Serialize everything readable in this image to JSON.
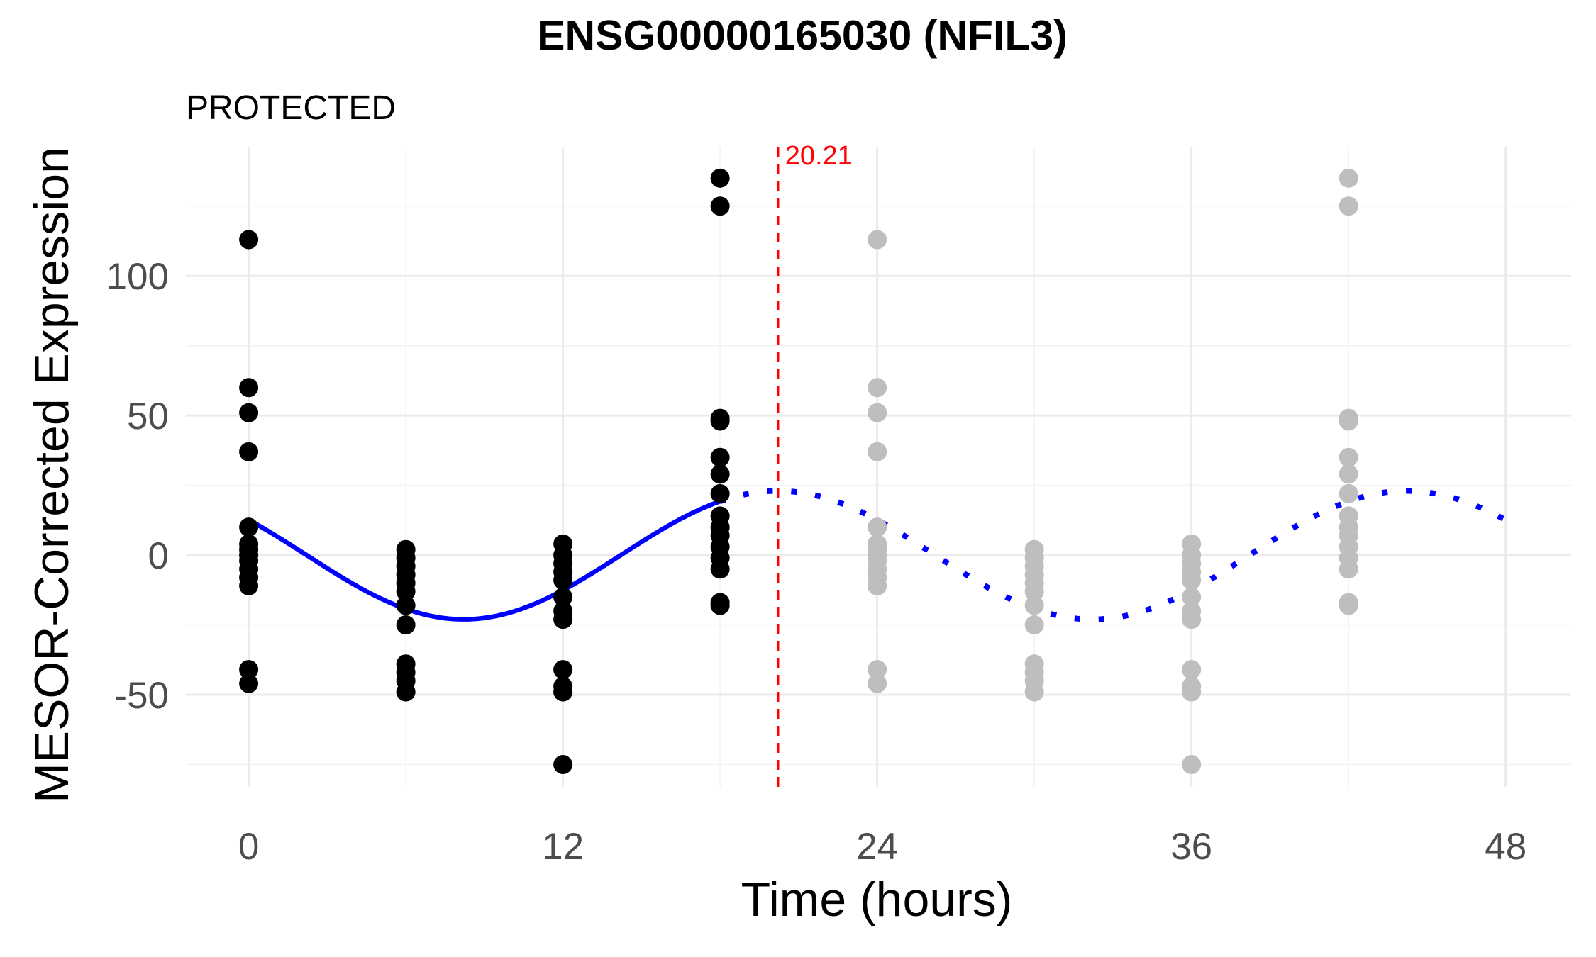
{
  "chart_data": {
    "type": "scatter",
    "title": "ENSG00000165030 (NFIL3)",
    "subtitle": "PROTECTED",
    "xlabel": "Time (hours)",
    "ylabel": "MESOR-Corrected Expression",
    "xlim": [
      -2.4,
      50.5
    ],
    "ylim": [
      -83,
      146
    ],
    "x_ticks": [
      0,
      12,
      24,
      36,
      48
    ],
    "y_ticks": [
      -50,
      0,
      50,
      100
    ],
    "x_tick_labels": [
      "0",
      "12",
      "24",
      "36",
      "48"
    ],
    "y_tick_labels": [
      "-50",
      "0",
      "50",
      "100"
    ],
    "x_minor_ticks": [
      6,
      18,
      30,
      42
    ],
    "y_minor_ticks": [
      -75,
      -25,
      25,
      75,
      125
    ],
    "grid": true,
    "observed_points": {
      "color": "#000000",
      "groups": [
        {
          "x": 0,
          "y": [
            113,
            60,
            51,
            37,
            10,
            4,
            2,
            0,
            -2,
            -5,
            -8,
            -11,
            -41,
            -46
          ]
        },
        {
          "x": 6,
          "y": [
            2,
            -1,
            -4,
            -7,
            -10,
            -13,
            -18,
            -25,
            -39,
            -42,
            -45,
            -49
          ]
        },
        {
          "x": 12,
          "y": [
            4,
            0,
            -3,
            -6,
            -9,
            -15,
            -20,
            -23,
            -41,
            -47,
            -49,
            -75
          ]
        },
        {
          "x": 18,
          "y": [
            135,
            125,
            49,
            48,
            35,
            29,
            22,
            14,
            10,
            7,
            3,
            -1,
            -5,
            -17,
            -18
          ]
        }
      ]
    },
    "projected_points": {
      "color": "#bebebe",
      "groups": [
        {
          "x": 24,
          "y": [
            113,
            60,
            51,
            37,
            10,
            4,
            2,
            0,
            -2,
            -5,
            -8,
            -11,
            -41,
            -46
          ]
        },
        {
          "x": 30,
          "y": [
            2,
            -1,
            -4,
            -7,
            -10,
            -13,
            -18,
            -25,
            -39,
            -42,
            -45,
            -49
          ]
        },
        {
          "x": 36,
          "y": [
            4,
            0,
            -3,
            -6,
            -9,
            -15,
            -20,
            -23,
            -41,
            -47,
            -49,
            -75
          ]
        },
        {
          "x": 42,
          "y": [
            135,
            125,
            49,
            48,
            35,
            29,
            22,
            14,
            10,
            7,
            3,
            -1,
            -5,
            -17,
            -18
          ]
        }
      ]
    },
    "fit_curve": {
      "color": "#0000ff",
      "mesor": 0,
      "amplitude": 23,
      "period": 24,
      "acrophase": 20.21,
      "solid_range": [
        0,
        18
      ],
      "dotted_range": [
        18,
        48
      ]
    },
    "vline": {
      "x": 20.21,
      "label": "20.21",
      "color": "#ff0000",
      "style": "dashed"
    }
  }
}
